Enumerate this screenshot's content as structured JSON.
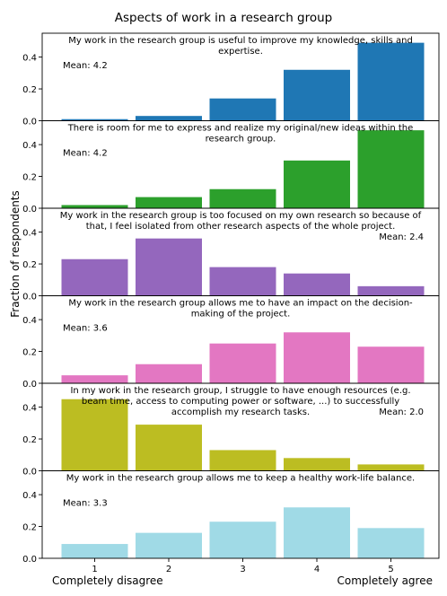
{
  "figure": {
    "title": "Aspects of work in a research group",
    "ylabel": "Fraction of respondents",
    "xlabel_left": "Completely disagree",
    "xlabel_right": "Completely agree"
  },
  "chart_data": [
    {
      "type": "bar",
      "title_lines": [
        "My work in the research group is useful to improve my knowledge, skills and",
        "expertise."
      ],
      "mean_label": "Mean: 4.2",
      "mean_position": "top-left",
      "color": "#1f77b4",
      "categories": [
        "1",
        "2",
        "3",
        "4",
        "5"
      ],
      "values": [
        0.01,
        0.03,
        0.14,
        0.32,
        0.49
      ],
      "ylim": [
        0,
        0.55
      ],
      "yticks": [
        0.0,
        0.2,
        0.4
      ]
    },
    {
      "type": "bar",
      "title_lines": [
        "There is room for me to express and realize my original/new ideas within the",
        "research group."
      ],
      "mean_label": "Mean: 4.2",
      "mean_position": "top-left",
      "color": "#2ca02c",
      "categories": [
        "1",
        "2",
        "3",
        "4",
        "5"
      ],
      "values": [
        0.02,
        0.07,
        0.12,
        0.3,
        0.49
      ],
      "ylim": [
        0,
        0.55
      ],
      "yticks": [
        0.0,
        0.2,
        0.4
      ]
    },
    {
      "type": "bar",
      "title_lines": [
        "My work in the research group is too focused on my own research so because of",
        "that, I feel isolated from other research aspects of the whole project."
      ],
      "mean_label": "Mean: 2.4",
      "mean_position": "top-right",
      "color": "#9467bd",
      "categories": [
        "1",
        "2",
        "3",
        "4",
        "5"
      ],
      "values": [
        0.23,
        0.36,
        0.18,
        0.14,
        0.06
      ],
      "ylim": [
        0,
        0.55
      ],
      "yticks": [
        0.0,
        0.2,
        0.4
      ]
    },
    {
      "type": "bar",
      "title_lines": [
        "My work in the research group allows me to have an impact on the decision-",
        "making of the project."
      ],
      "mean_label": "Mean: 3.6",
      "mean_position": "top-left",
      "color": "#e377c2",
      "categories": [
        "1",
        "2",
        "3",
        "4",
        "5"
      ],
      "values": [
        0.05,
        0.12,
        0.25,
        0.32,
        0.23
      ],
      "ylim": [
        0,
        0.55
      ],
      "yticks": [
        0.0,
        0.2,
        0.4
      ]
    },
    {
      "type": "bar",
      "title_lines": [
        "In my work in the research group, I struggle to have enough resources (e.g.",
        "beam time, access to computing power or software, ...) to successfully",
        "accomplish my research tasks."
      ],
      "mean_label": "Mean: 2.0",
      "mean_position": "top-right",
      "color": "#bcbd22",
      "categories": [
        "1",
        "2",
        "3",
        "4",
        "5"
      ],
      "values": [
        0.45,
        0.29,
        0.13,
        0.08,
        0.04
      ],
      "ylim": [
        0,
        0.55
      ],
      "yticks": [
        0.0,
        0.2,
        0.4
      ]
    },
    {
      "type": "bar",
      "title_lines": [
        "My work in the research group allows me to keep a healthy work-life balance."
      ],
      "mean_label": "Mean: 3.3",
      "mean_position": "top-left",
      "color": "#a0dae6",
      "categories": [
        "1",
        "2",
        "3",
        "4",
        "5"
      ],
      "values": [
        0.09,
        0.16,
        0.23,
        0.32,
        0.19
      ],
      "ylim": [
        0,
        0.55
      ],
      "yticks": [
        0.0,
        0.2,
        0.4
      ]
    }
  ]
}
